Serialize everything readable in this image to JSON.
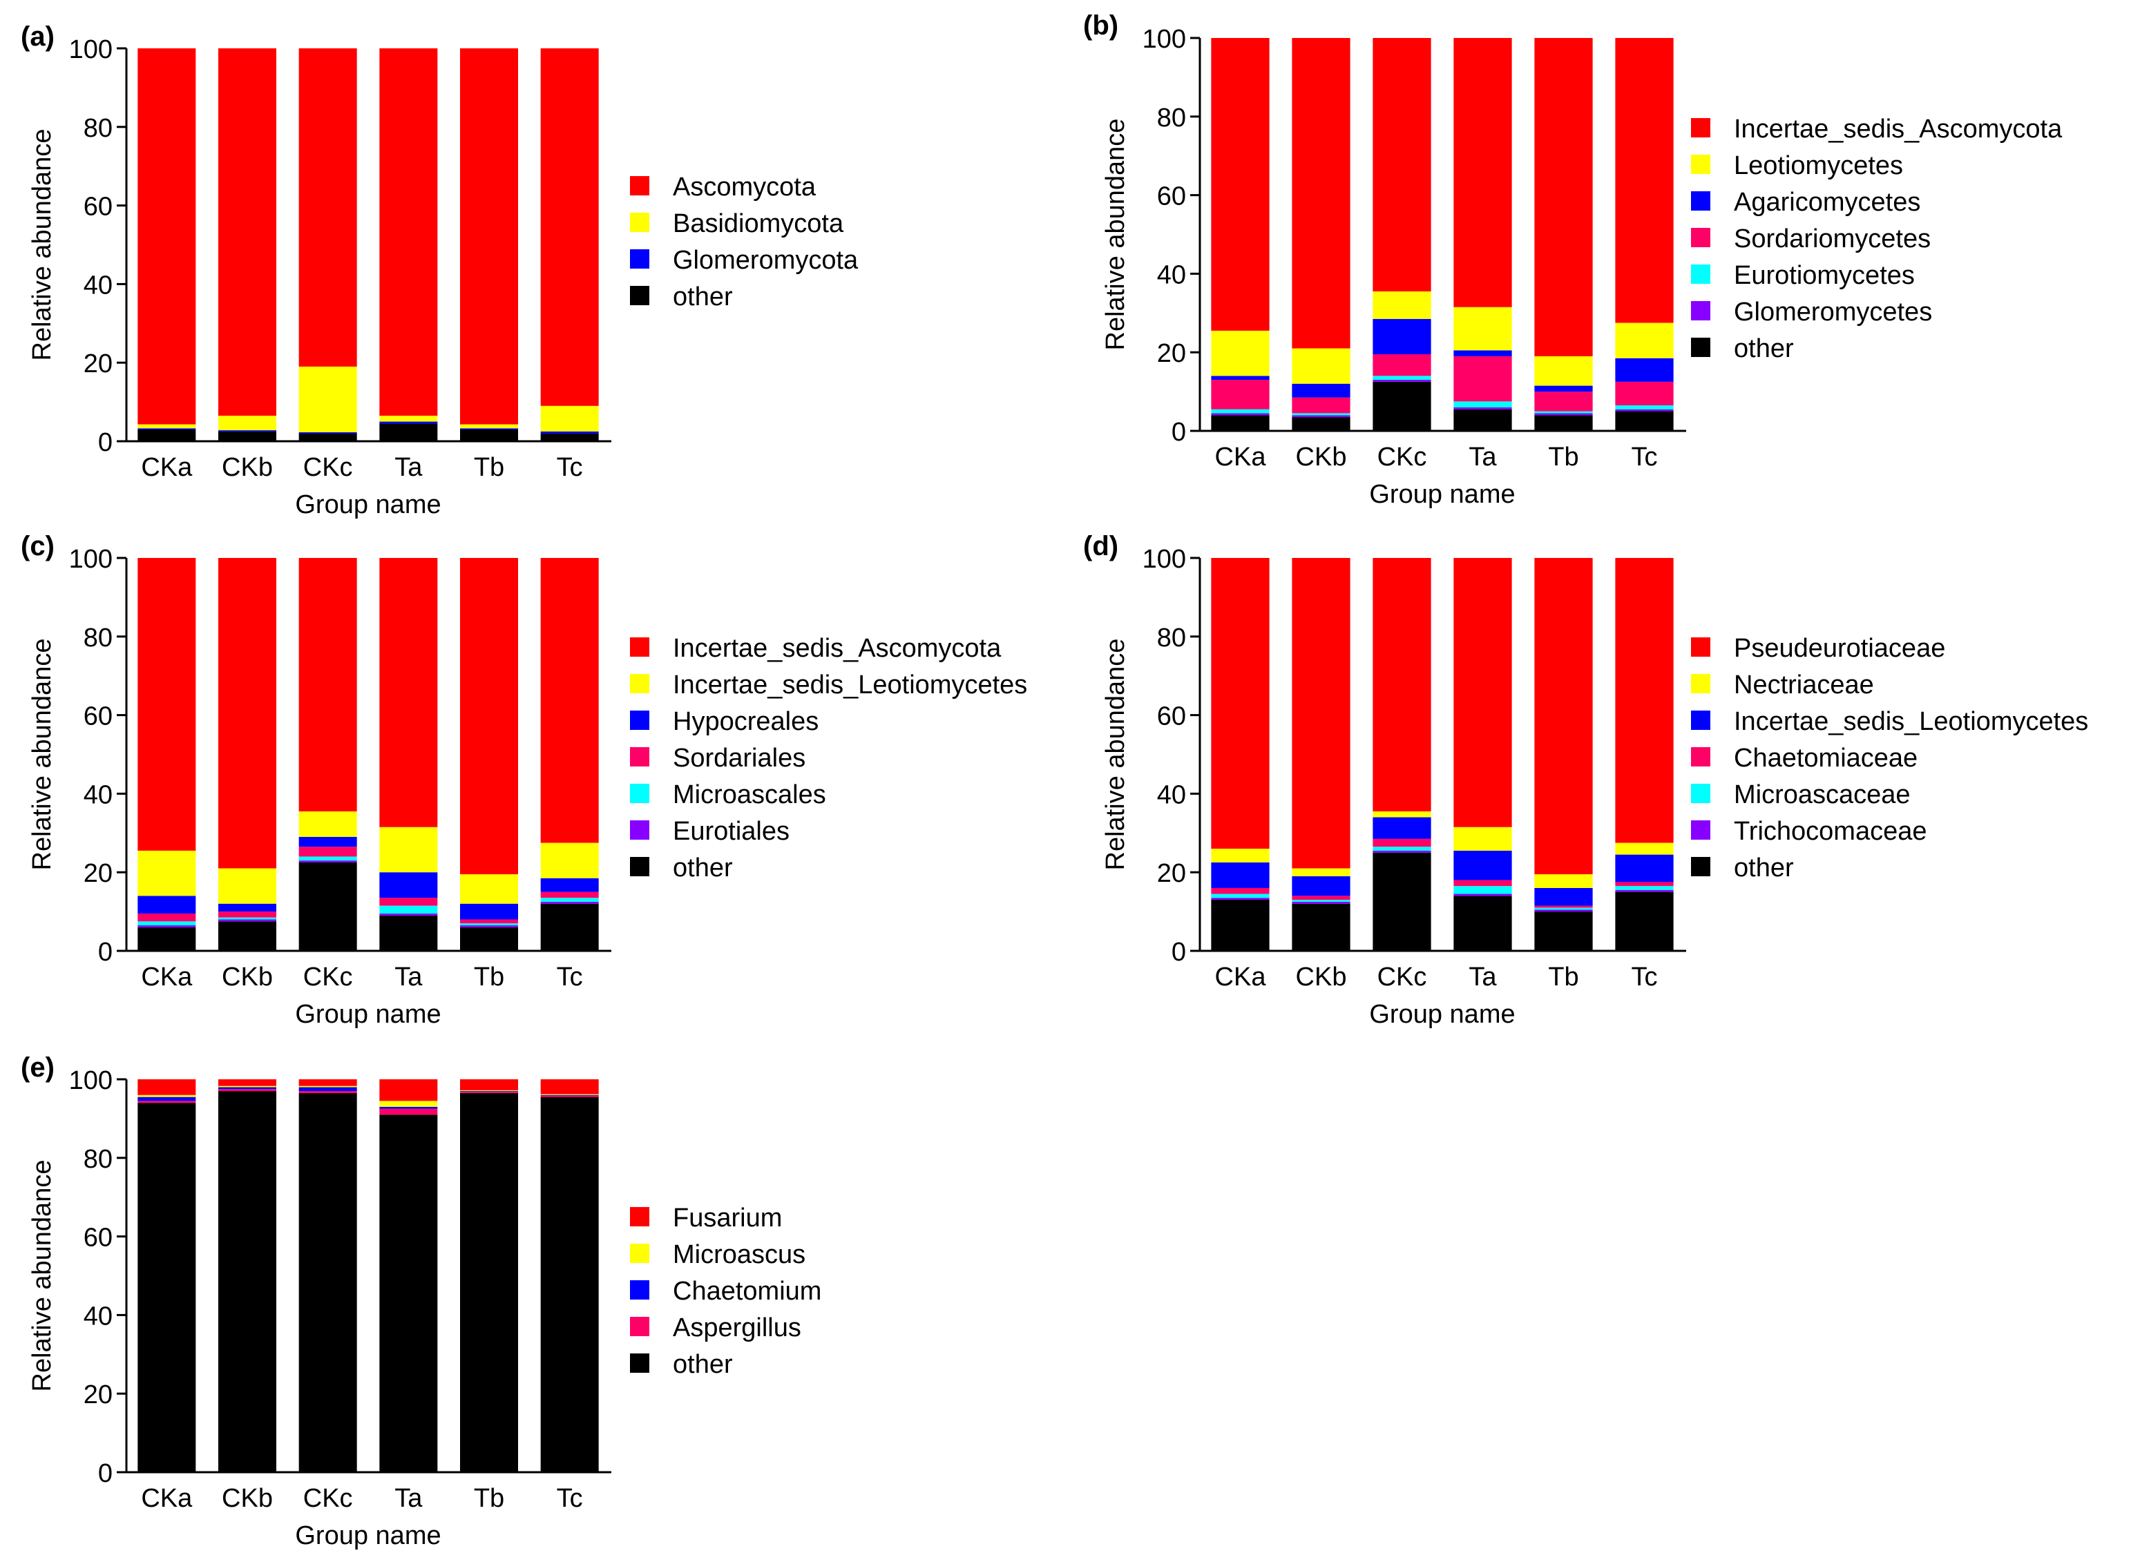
{
  "colors": {
    "red": "#ff0000",
    "yellow": "#ffff00",
    "blue": "#0000ff",
    "pink": "#ff0066",
    "cyan": "#00ffff",
    "purple": "#8800ff",
    "black": "#000000"
  },
  "chart_data": [
    {
      "type": "bar",
      "stacked": true,
      "panel_label": "(a)",
      "xlabel": "Group name",
      "ylabel": "Relative abundance",
      "ylim": [
        0,
        100
      ],
      "yticks": [
        "0",
        "20",
        "40",
        "60",
        "80",
        "100"
      ],
      "categories": [
        "CKa",
        "CKb",
        "CKc",
        "Ta",
        "Tb",
        "Tc"
      ],
      "legend_position": "right",
      "series": [
        {
          "name": "other",
          "color": "black",
          "values": [
            3.0,
            2.5,
            2.0,
            4.5,
            3.0,
            2.0
          ]
        },
        {
          "name": "Glomeromycota",
          "color": "blue",
          "values": [
            0.3,
            0.3,
            0.3,
            0.5,
            0.3,
            0.5
          ]
        },
        {
          "name": "Basidiomycota",
          "color": "yellow",
          "values": [
            1.0,
            3.7,
            16.7,
            1.5,
            1.0,
            6.5
          ]
        },
        {
          "name": "Ascomycota",
          "color": "red",
          "values": [
            95.7,
            93.5,
            81.0,
            93.5,
            95.7,
            91.0
          ]
        }
      ],
      "legend": [
        {
          "name": "Ascomycota",
          "color": "red"
        },
        {
          "name": "Basidiomycota",
          "color": "yellow"
        },
        {
          "name": "Glomeromycota",
          "color": "blue"
        },
        {
          "name": "other",
          "color": "black"
        }
      ]
    },
    {
      "type": "bar",
      "stacked": true,
      "panel_label": "(b)",
      "xlabel": "Group name",
      "ylabel": "Relative abundance",
      "ylim": [
        0,
        100
      ],
      "yticks": [
        "0",
        "20",
        "40",
        "60",
        "80",
        "100"
      ],
      "categories": [
        "CKa",
        "CKb",
        "CKc",
        "Ta",
        "Tb",
        "Tc"
      ],
      "legend_position": "right",
      "series": [
        {
          "name": "other",
          "color": "black",
          "values": [
            4.0,
            3.5,
            12.5,
            5.5,
            4.0,
            5.0
          ]
        },
        {
          "name": "Glomeromycetes",
          "color": "purple",
          "values": [
            0.5,
            0.5,
            0.5,
            0.5,
            0.5,
            0.5
          ]
        },
        {
          "name": "Eurotiomycetes",
          "color": "cyan",
          "values": [
            1.0,
            0.5,
            1.0,
            1.5,
            0.5,
            1.0
          ]
        },
        {
          "name": "Sordariomycetes",
          "color": "pink",
          "values": [
            7.5,
            4.0,
            5.5,
            11.5,
            5.0,
            6.0
          ]
        },
        {
          "name": "Agaricomycetes",
          "color": "blue",
          "values": [
            1.0,
            3.5,
            9.0,
            1.5,
            1.5,
            6.0
          ]
        },
        {
          "name": "Leotiomycetes",
          "color": "yellow",
          "values": [
            11.5,
            9.0,
            7.0,
            11.0,
            7.5,
            9.0
          ]
        },
        {
          "name": "Incertae_sedis_Ascomycota",
          "color": "red",
          "values": [
            74.5,
            79.0,
            64.5,
            68.5,
            81.0,
            72.5
          ]
        }
      ],
      "legend": [
        {
          "name": "Incertae_sedis_Ascomycota",
          "color": "red"
        },
        {
          "name": "Leotiomycetes",
          "color": "yellow"
        },
        {
          "name": "Agaricomycetes",
          "color": "blue"
        },
        {
          "name": "Sordariomycetes",
          "color": "pink"
        },
        {
          "name": "Eurotiomycetes",
          "color": "cyan"
        },
        {
          "name": "Glomeromycetes",
          "color": "purple"
        },
        {
          "name": "other",
          "color": "black"
        }
      ]
    },
    {
      "type": "bar",
      "stacked": true,
      "panel_label": "(c)",
      "xlabel": "Group name",
      "ylabel": "Relative abundance",
      "ylim": [
        0,
        100
      ],
      "yticks": [
        "0",
        "20",
        "40",
        "60",
        "80",
        "100"
      ],
      "categories": [
        "CKa",
        "CKb",
        "CKc",
        "Ta",
        "Tb",
        "Tc"
      ],
      "legend_position": "right",
      "series": [
        {
          "name": "other",
          "color": "black",
          "values": [
            6.0,
            7.5,
            22.5,
            9.0,
            6.0,
            12.0
          ]
        },
        {
          "name": "Eurotiales",
          "color": "purple",
          "values": [
            0.5,
            0.5,
            0.5,
            0.5,
            0.5,
            0.5
          ]
        },
        {
          "name": "Microascales",
          "color": "cyan",
          "values": [
            1.0,
            0.5,
            1.0,
            2.0,
            0.5,
            1.0
          ]
        },
        {
          "name": "Sordariales",
          "color": "pink",
          "values": [
            2.0,
            1.5,
            2.5,
            2.0,
            1.0,
            1.5
          ]
        },
        {
          "name": "Hypocreales",
          "color": "blue",
          "values": [
            4.5,
            2.0,
            2.5,
            6.5,
            4.0,
            3.5
          ]
        },
        {
          "name": "Incertae_sedis_Leotiomycetes",
          "color": "yellow",
          "values": [
            11.5,
            9.0,
            6.5,
            11.5,
            7.5,
            9.0
          ]
        },
        {
          "name": "Incertae_sedis_Ascomycota",
          "color": "red",
          "values": [
            74.5,
            79.0,
            64.5,
            68.5,
            80.5,
            72.5
          ]
        }
      ],
      "legend": [
        {
          "name": "Incertae_sedis_Ascomycota",
          "color": "red"
        },
        {
          "name": "Incertae_sedis_Leotiomycetes",
          "color": "yellow"
        },
        {
          "name": "Hypocreales",
          "color": "blue"
        },
        {
          "name": "Sordariales",
          "color": "pink"
        },
        {
          "name": "Microascales",
          "color": "cyan"
        },
        {
          "name": "Eurotiales",
          "color": "purple"
        },
        {
          "name": "other",
          "color": "black"
        }
      ]
    },
    {
      "type": "bar",
      "stacked": true,
      "panel_label": "(d)",
      "xlabel": "Group name",
      "ylabel": "Relative abundance",
      "ylim": [
        0,
        100
      ],
      "yticks": [
        "0",
        "20",
        "40",
        "60",
        "80",
        "100"
      ],
      "categories": [
        "CKa",
        "CKb",
        "CKc",
        "Ta",
        "Tb",
        "Tc"
      ],
      "legend_position": "right",
      "series": [
        {
          "name": "other",
          "color": "black",
          "values": [
            13.0,
            12.0,
            25.0,
            14.0,
            10.0,
            15.0
          ]
        },
        {
          "name": "Trichocomaceae",
          "color": "purple",
          "values": [
            0.5,
            0.5,
            0.5,
            0.5,
            0.5,
            0.5
          ]
        },
        {
          "name": "Microascaceae",
          "color": "cyan",
          "values": [
            1.0,
            0.5,
            1.0,
            2.0,
            0.5,
            1.0
          ]
        },
        {
          "name": "Chaetomiaceae",
          "color": "pink",
          "values": [
            1.5,
            1.0,
            2.0,
            1.5,
            0.5,
            1.0
          ]
        },
        {
          "name": "Incertae_sedis_Leotiomycetes",
          "color": "blue",
          "values": [
            6.5,
            5.0,
            5.5,
            7.5,
            4.5,
            7.0
          ]
        },
        {
          "name": "Nectriaceae",
          "color": "yellow",
          "values": [
            3.5,
            2.0,
            1.5,
            6.0,
            3.5,
            3.0
          ]
        },
        {
          "name": "Pseudeurotiaceae",
          "color": "red",
          "values": [
            74.0,
            79.0,
            64.5,
            68.5,
            80.5,
            72.5
          ]
        }
      ],
      "legend": [
        {
          "name": "Pseudeurotiaceae",
          "color": "red"
        },
        {
          "name": "Nectriaceae",
          "color": "yellow"
        },
        {
          "name": "Incertae_sedis_Leotiomycetes",
          "color": "blue"
        },
        {
          "name": "Chaetomiaceae",
          "color": "pink"
        },
        {
          "name": "Microascaceae",
          "color": "cyan"
        },
        {
          "name": "Trichocomaceae",
          "color": "purple"
        },
        {
          "name": "other",
          "color": "black"
        }
      ]
    },
    {
      "type": "bar",
      "stacked": true,
      "panel_label": "(e)",
      "xlabel": "Group name",
      "ylabel": "Relative abundance",
      "ylim": [
        0,
        100
      ],
      "yticks": [
        "0",
        "20",
        "40",
        "60",
        "80",
        "100"
      ],
      "categories": [
        "CKa",
        "CKb",
        "CKc",
        "Ta",
        "Tb",
        "Tc"
      ],
      "legend_position": "right",
      "series": [
        {
          "name": "other",
          "color": "black",
          "values": [
            94.0,
            97.0,
            96.5,
            91.0,
            96.5,
            95.5
          ]
        },
        {
          "name": "Aspergillus",
          "color": "pink",
          "values": [
            0.5,
            0.5,
            0.5,
            1.5,
            0.3,
            0.3
          ]
        },
        {
          "name": "Chaetomium",
          "color": "blue",
          "values": [
            1.0,
            0.5,
            1.0,
            0.5,
            0.2,
            0.2
          ]
        },
        {
          "name": "Microascus",
          "color": "yellow",
          "values": [
            0.5,
            0.3,
            0.3,
            1.5,
            0.2,
            0.2
          ]
        },
        {
          "name": "Fusarium",
          "color": "red",
          "values": [
            4.0,
            1.7,
            1.7,
            5.5,
            2.8,
            3.8
          ]
        }
      ],
      "legend": [
        {
          "name": "Fusarium",
          "color": "red"
        },
        {
          "name": "Microascus",
          "color": "yellow"
        },
        {
          "name": "Chaetomium",
          "color": "blue"
        },
        {
          "name": "Aspergillus",
          "color": "pink"
        },
        {
          "name": "other",
          "color": "black"
        }
      ]
    }
  ]
}
